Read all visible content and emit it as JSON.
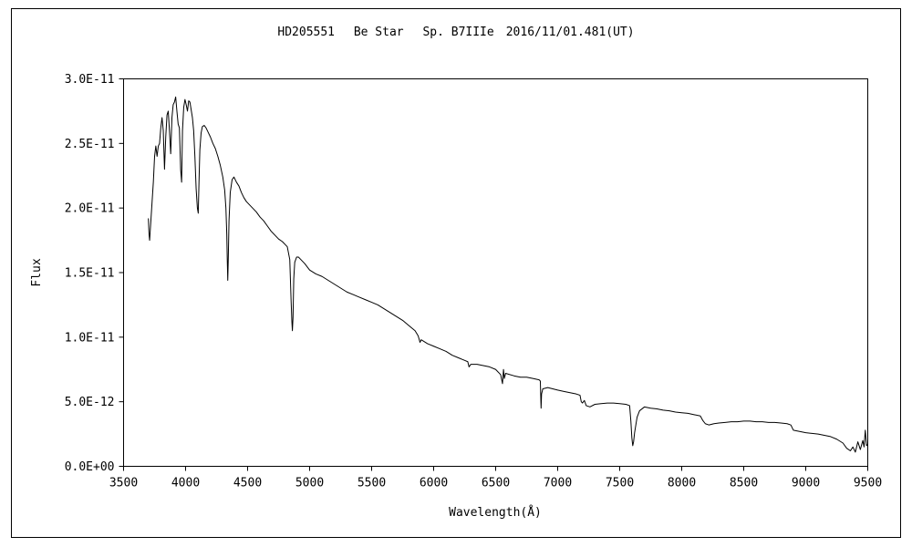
{
  "chart_data": {
    "type": "line",
    "title": "HD205551　 Be Star　 Sp. B7IIIe　2016/11/01.481(UT)",
    "xlabel": "Wavelength(Å)",
    "ylabel": "Flux",
    "xlim": [
      3500,
      9500
    ],
    "ylim": [
      0,
      3e-11
    ],
    "grid": false,
    "x_ticks": [
      3500,
      4000,
      4500,
      5000,
      5500,
      6000,
      6500,
      7000,
      7500,
      8000,
      8500,
      9000,
      9500
    ],
    "x_tick_labels": [
      "3500",
      "4000",
      "4500",
      "5000",
      "5500",
      "6000",
      "6500",
      "7000",
      "7500",
      "8000",
      "8500",
      "9000",
      "9500"
    ],
    "y_ticks": [
      0,
      5e-12,
      1e-11,
      1.5e-11,
      2e-11,
      2.5e-11,
      3e-11
    ],
    "y_tick_labels": [
      "0.0E+00",
      "5.0E-12",
      "1.0E-11",
      "1.5E-11",
      "2.0E-11",
      "2.5E-11",
      "3.0E-11"
    ],
    "series": [
      {
        "color": "#000000",
        "points": [
          [
            3700,
            1.92e-11
          ],
          [
            3705,
            1.8e-11
          ],
          [
            3710,
            1.75e-11
          ],
          [
            3720,
            1.9e-11
          ],
          [
            3730,
            2.05e-11
          ],
          [
            3740,
            2.2e-11
          ],
          [
            3750,
            2.4e-11
          ],
          [
            3760,
            2.48e-11
          ],
          [
            3770,
            2.4e-11
          ],
          [
            3780,
            2.48e-11
          ],
          [
            3790,
            2.5e-11
          ],
          [
            3800,
            2.62e-11
          ],
          [
            3810,
            2.7e-11
          ],
          [
            3820,
            2.6e-11
          ],
          [
            3830,
            2.3e-11
          ],
          [
            3840,
            2.55e-11
          ],
          [
            3850,
            2.72e-11
          ],
          [
            3860,
            2.75e-11
          ],
          [
            3870,
            2.6e-11
          ],
          [
            3880,
            2.42e-11
          ],
          [
            3890,
            2.7e-11
          ],
          [
            3900,
            2.8e-11
          ],
          [
            3910,
            2.82e-11
          ],
          [
            3920,
            2.86e-11
          ],
          [
            3930,
            2.75e-11
          ],
          [
            3940,
            2.65e-11
          ],
          [
            3950,
            2.62e-11
          ],
          [
            3960,
            2.3e-11
          ],
          [
            3968,
            2.2e-11
          ],
          [
            3975,
            2.6e-11
          ],
          [
            3985,
            2.78e-11
          ],
          [
            3995,
            2.84e-11
          ],
          [
            4005,
            2.8e-11
          ],
          [
            4015,
            2.75e-11
          ],
          [
            4025,
            2.83e-11
          ],
          [
            4035,
            2.82e-11
          ],
          [
            4045,
            2.76e-11
          ],
          [
            4055,
            2.7e-11
          ],
          [
            4065,
            2.6e-11
          ],
          [
            4075,
            2.4e-11
          ],
          [
            4085,
            2.15e-11
          ],
          [
            4095,
            2e-11
          ],
          [
            4102,
            1.96e-11
          ],
          [
            4108,
            2.2e-11
          ],
          [
            4115,
            2.45e-11
          ],
          [
            4125,
            2.58e-11
          ],
          [
            4135,
            2.63e-11
          ],
          [
            4150,
            2.64e-11
          ],
          [
            4165,
            2.62e-11
          ],
          [
            4180,
            2.59e-11
          ],
          [
            4200,
            2.55e-11
          ],
          [
            4220,
            2.5e-11
          ],
          [
            4240,
            2.46e-11
          ],
          [
            4260,
            2.4e-11
          ],
          [
            4280,
            2.33e-11
          ],
          [
            4300,
            2.24e-11
          ],
          [
            4315,
            2.14e-11
          ],
          [
            4325,
            2e-11
          ],
          [
            4332,
            1.8e-11
          ],
          [
            4336,
            1.6e-11
          ],
          [
            4340,
            1.44e-11
          ],
          [
            4344,
            1.6e-11
          ],
          [
            4350,
            1.9e-11
          ],
          [
            4360,
            2.12e-11
          ],
          [
            4375,
            2.22e-11
          ],
          [
            4390,
            2.24e-11
          ],
          [
            4410,
            2.2e-11
          ],
          [
            4430,
            2.17e-11
          ],
          [
            4450,
            2.12e-11
          ],
          [
            4470,
            2.08e-11
          ],
          [
            4490,
            2.05e-11
          ],
          [
            4510,
            2.03e-11
          ],
          [
            4540,
            2e-11
          ],
          [
            4570,
            1.97e-11
          ],
          [
            4600,
            1.93e-11
          ],
          [
            4630,
            1.9e-11
          ],
          [
            4660,
            1.86e-11
          ],
          [
            4690,
            1.82e-11
          ],
          [
            4720,
            1.79e-11
          ],
          [
            4750,
            1.76e-11
          ],
          [
            4780,
            1.74e-11
          ],
          [
            4800,
            1.72e-11
          ],
          [
            4820,
            1.7e-11
          ],
          [
            4840,
            1.6e-11
          ],
          [
            4850,
            1.3e-11
          ],
          [
            4857,
            1.12e-11
          ],
          [
            4861,
            1.05e-11
          ],
          [
            4866,
            1.15e-11
          ],
          [
            4872,
            1.45e-11
          ],
          [
            4880,
            1.58e-11
          ],
          [
            4895,
            1.62e-11
          ],
          [
            4910,
            1.62e-11
          ],
          [
            4930,
            1.6e-11
          ],
          [
            4960,
            1.57e-11
          ],
          [
            5000,
            1.52e-11
          ],
          [
            5050,
            1.49e-11
          ],
          [
            5100,
            1.47e-11
          ],
          [
            5150,
            1.44e-11
          ],
          [
            5200,
            1.41e-11
          ],
          [
            5250,
            1.38e-11
          ],
          [
            5300,
            1.35e-11
          ],
          [
            5350,
            1.33e-11
          ],
          [
            5400,
            1.31e-11
          ],
          [
            5450,
            1.29e-11
          ],
          [
            5500,
            1.27e-11
          ],
          [
            5550,
            1.25e-11
          ],
          [
            5600,
            1.22e-11
          ],
          [
            5650,
            1.19e-11
          ],
          [
            5700,
            1.16e-11
          ],
          [
            5750,
            1.13e-11
          ],
          [
            5800,
            1.09e-11
          ],
          [
            5850,
            1.05e-11
          ],
          [
            5875,
            1.01e-11
          ],
          [
            5890,
            9.6e-12
          ],
          [
            5900,
            9.8e-12
          ],
          [
            5950,
            9.5e-12
          ],
          [
            6000,
            9.3e-12
          ],
          [
            6050,
            9.1e-12
          ],
          [
            6100,
            8.9e-12
          ],
          [
            6150,
            8.6e-12
          ],
          [
            6200,
            8.4e-12
          ],
          [
            6250,
            8.2e-12
          ],
          [
            6275,
            8.1e-12
          ],
          [
            6285,
            7.7e-12
          ],
          [
            6300,
            7.9e-12
          ],
          [
            6350,
            7.9e-12
          ],
          [
            6400,
            7.8e-12
          ],
          [
            6450,
            7.7e-12
          ],
          [
            6500,
            7.5e-12
          ],
          [
            6540,
            7.1e-12
          ],
          [
            6555,
            6.4e-12
          ],
          [
            6563,
            7.5e-12
          ],
          [
            6570,
            6.8e-12
          ],
          [
            6580,
            7.2e-12
          ],
          [
            6650,
            7e-12
          ],
          [
            6700,
            6.9e-12
          ],
          [
            6750,
            6.9e-12
          ],
          [
            6800,
            6.8e-12
          ],
          [
            6850,
            6.7e-12
          ],
          [
            6860,
            6.6e-12
          ],
          [
            6866,
            4.5e-12
          ],
          [
            6870,
            5.6e-12
          ],
          [
            6880,
            6e-12
          ],
          [
            6920,
            6.1e-12
          ],
          [
            6960,
            6e-12
          ],
          [
            7000,
            5.9e-12
          ],
          [
            7050,
            5.8e-12
          ],
          [
            7100,
            5.7e-12
          ],
          [
            7150,
            5.6e-12
          ],
          [
            7180,
            5.5e-12
          ],
          [
            7190,
            5e-12
          ],
          [
            7200,
            4.9e-12
          ],
          [
            7215,
            5.1e-12
          ],
          [
            7230,
            4.7e-12
          ],
          [
            7260,
            4.6e-12
          ],
          [
            7300,
            4.8e-12
          ],
          [
            7350,
            4.85e-12
          ],
          [
            7400,
            4.9e-12
          ],
          [
            7450,
            4.9e-12
          ],
          [
            7500,
            4.85e-12
          ],
          [
            7550,
            4.8e-12
          ],
          [
            7580,
            4.7e-12
          ],
          [
            7590,
            3.5e-12
          ],
          [
            7598,
            2.2e-12
          ],
          [
            7605,
            1.6e-12
          ],
          [
            7612,
            1.9e-12
          ],
          [
            7620,
            2.6e-12
          ],
          [
            7640,
            3.8e-12
          ],
          [
            7660,
            4.3e-12
          ],
          [
            7700,
            4.6e-12
          ],
          [
            7750,
            4.5e-12
          ],
          [
            7800,
            4.45e-12
          ],
          [
            7850,
            4.35e-12
          ],
          [
            7900,
            4.3e-12
          ],
          [
            7950,
            4.2e-12
          ],
          [
            8000,
            4.15e-12
          ],
          [
            8050,
            4.1e-12
          ],
          [
            8100,
            4e-12
          ],
          [
            8150,
            3.9e-12
          ],
          [
            8170,
            3.55e-12
          ],
          [
            8190,
            3.3e-12
          ],
          [
            8220,
            3.2e-12
          ],
          [
            8260,
            3.3e-12
          ],
          [
            8300,
            3.35e-12
          ],
          [
            8350,
            3.4e-12
          ],
          [
            8400,
            3.45e-12
          ],
          [
            8450,
            3.45e-12
          ],
          [
            8500,
            3.5e-12
          ],
          [
            8550,
            3.5e-12
          ],
          [
            8600,
            3.45e-12
          ],
          [
            8650,
            3.45e-12
          ],
          [
            8700,
            3.4e-12
          ],
          [
            8750,
            3.4e-12
          ],
          [
            8800,
            3.35e-12
          ],
          [
            8850,
            3.3e-12
          ],
          [
            8880,
            3.2e-12
          ],
          [
            8900,
            2.8e-12
          ],
          [
            8950,
            2.7e-12
          ],
          [
            9000,
            2.6e-12
          ],
          [
            9050,
            2.55e-12
          ],
          [
            9100,
            2.5e-12
          ],
          [
            9150,
            2.4e-12
          ],
          [
            9200,
            2.3e-12
          ],
          [
            9250,
            2.1e-12
          ],
          [
            9300,
            1.8e-12
          ],
          [
            9330,
            1.4e-12
          ],
          [
            9360,
            1.2e-12
          ],
          [
            9380,
            1.5e-12
          ],
          [
            9400,
            1.1e-12
          ],
          [
            9420,
            1.9e-12
          ],
          [
            9440,
            1.3e-12
          ],
          [
            9460,
            2e-12
          ],
          [
            9470,
            1.5e-12
          ],
          [
            9480,
            2.8e-12
          ],
          [
            9490,
            1.6e-12
          ],
          [
            9500,
            1.7e-12
          ]
        ]
      }
    ]
  }
}
